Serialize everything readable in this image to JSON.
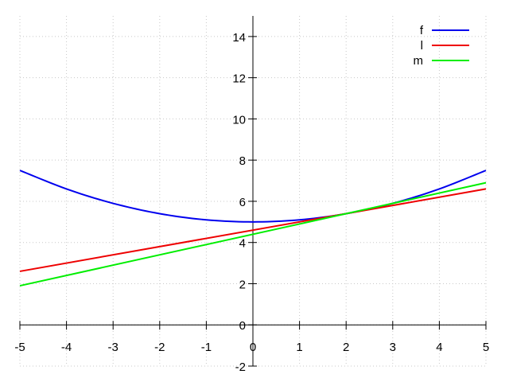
{
  "chart_data": {
    "type": "line",
    "title": "",
    "xlabel": "",
    "ylabel": "",
    "xlim": [
      -5,
      5
    ],
    "ylim": [
      -2,
      15
    ],
    "x_ticks": [
      -5,
      -4,
      -3,
      -2,
      -1,
      0,
      1,
      2,
      3,
      4,
      5
    ],
    "y_ticks": [
      -2,
      0,
      2,
      4,
      6,
      8,
      10,
      12,
      14
    ],
    "x_tick_labels": [
      "-5",
      "-4",
      "-3",
      "-2",
      "-1",
      "0",
      "1",
      "2",
      "3",
      "4",
      "5"
    ],
    "y_tick_labels": [
      "-2",
      "0",
      "2",
      "4",
      "6",
      "8",
      "10",
      "12",
      "14"
    ],
    "grid": true,
    "legend_position": "top-right",
    "series": [
      {
        "name": "f",
        "color": "#0000ee",
        "x": [
          -5,
          -4,
          -3,
          -2,
          -1,
          0,
          1,
          2,
          3,
          4,
          5
        ],
        "y": [
          7.5,
          6.6,
          5.9,
          5.4,
          5.1,
          5.0,
          5.1,
          5.4,
          5.9,
          6.6,
          7.5
        ]
      },
      {
        "name": "l",
        "color": "#ee0000",
        "x": [
          -5,
          5
        ],
        "y": [
          2.6,
          6.6
        ]
      },
      {
        "name": "m",
        "color": "#00ee00",
        "x": [
          -5,
          5
        ],
        "y": [
          1.9,
          6.9
        ]
      }
    ]
  }
}
